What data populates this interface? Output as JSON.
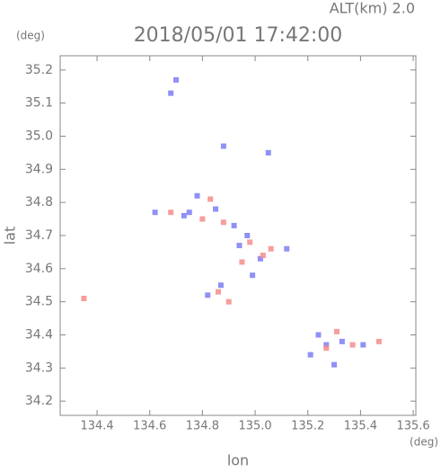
{
  "chart_data": {
    "type": "scatter",
    "title": "2018/05/01 17:42:00",
    "annotation": "ALT(km) 2.0",
    "y_unit": "(deg)",
    "x_unit": "(deg)",
    "x_label": "lon",
    "y_label": "lat",
    "xlim": [
      134.26,
      135.61
    ],
    "ylim": [
      34.157,
      35.243
    ],
    "xticks": [
      134.4,
      134.6,
      134.8,
      {
        "value": 135,
        "label": "135.0"
      },
      135.2,
      135.4,
      135.6
    ],
    "yticks": [
      34.2,
      34.3,
      34.4,
      34.5,
      34.6,
      34.7,
      34.8,
      34.9,
      {
        "value": 35,
        "label": "35.0"
      },
      35.1,
      35.2
    ],
    "series": [
      {
        "color": "#7c7cf4",
        "x": [
          134.7,
          134.68,
          134.88,
          135.05,
          134.62,
          134.78,
          134.75,
          134.85,
          134.92,
          134.97,
          135.02,
          134.87,
          134.82,
          135.12,
          135.21,
          135.27,
          135.24,
          135.33,
          135.41,
          134.73,
          134.94,
          135.3,
          134.99
        ],
        "y": [
          35.17,
          35.13,
          34.97,
          34.95,
          34.77,
          34.82,
          34.77,
          34.78,
          34.73,
          34.7,
          34.63,
          34.55,
          34.52,
          34.66,
          34.34,
          34.37,
          34.4,
          34.38,
          34.37,
          34.76,
          34.67,
          34.31,
          34.58
        ]
      },
      {
        "color": "#f48c8c",
        "x": [
          134.35,
          134.8,
          134.68,
          134.88,
          135.03,
          134.9,
          135.31,
          135.27,
          135.47,
          134.83,
          134.98,
          135.06,
          134.86,
          134.95,
          135.37
        ],
        "y": [
          34.51,
          34.75,
          34.77,
          34.74,
          34.64,
          34.5,
          34.41,
          34.36,
          34.38,
          34.81,
          34.68,
          34.66,
          34.53,
          34.62,
          34.37
        ]
      }
    ]
  }
}
